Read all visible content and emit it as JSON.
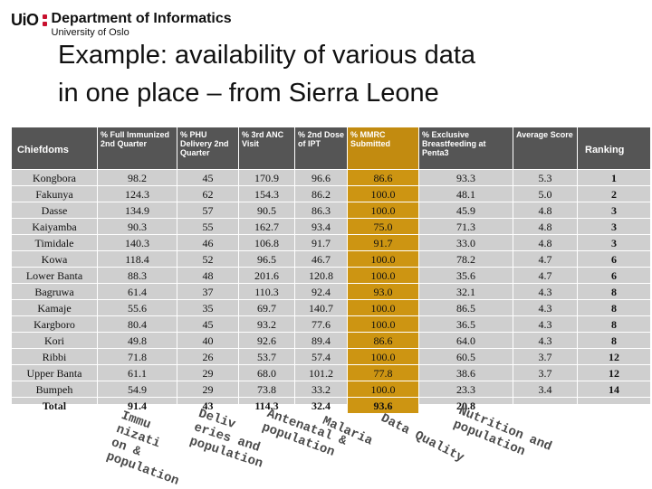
{
  "brand": {
    "logo": "UiO",
    "department": "Department of Informatics",
    "university": "University of Oslo"
  },
  "title": {
    "line1": "Example: availability of various data",
    "line2": "in one place – from Sierra Leone"
  },
  "table": {
    "headers": [
      "Chiefdoms",
      "% Full Immunized 2nd Quarter",
      "% PHU Delivery 2nd Quarter",
      "% 3rd ANC Visit",
      "% 2nd Dose of IPT",
      "% MMRC Submitted",
      "% Exclusive Breastfeeding at Penta3",
      "Average Score",
      "Ranking"
    ],
    "rows": [
      [
        "Kongbora",
        "98.2",
        "45",
        "170.9",
        "96.6",
        "86.6",
        "93.3",
        "5.3",
        "1"
      ],
      [
        "Fakunya",
        "124.3",
        "62",
        "154.3",
        "86.2",
        "100.0",
        "48.1",
        "5.0",
        "2"
      ],
      [
        "Dasse",
        "134.9",
        "57",
        "90.5",
        "86.3",
        "100.0",
        "45.9",
        "4.8",
        "3"
      ],
      [
        "Kaiyamba",
        "90.3",
        "55",
        "162.7",
        "93.4",
        "75.0",
        "71.3",
        "4.8",
        "3"
      ],
      [
        "Timidale",
        "140.3",
        "46",
        "106.8",
        "91.7",
        "91.7",
        "33.0",
        "4.8",
        "3"
      ],
      [
        "Kowa",
        "118.4",
        "52",
        "96.5",
        "46.7",
        "100.0",
        "78.2",
        "4.7",
        "6"
      ],
      [
        "Lower Banta",
        "88.3",
        "48",
        "201.6",
        "120.8",
        "100.0",
        "35.6",
        "4.7",
        "6"
      ],
      [
        "Bagruwa",
        "61.4",
        "37",
        "110.3",
        "92.4",
        "93.0",
        "32.1",
        "4.3",
        "8"
      ],
      [
        "Kamaje",
        "55.6",
        "35",
        "69.7",
        "140.7",
        "100.0",
        "86.5",
        "4.3",
        "8"
      ],
      [
        "Kargboro",
        "80.4",
        "45",
        "93.2",
        "77.6",
        "100.0",
        "36.5",
        "4.3",
        "8"
      ],
      [
        "Kori",
        "49.8",
        "40",
        "92.6",
        "89.4",
        "86.6",
        "64.0",
        "4.3",
        "8"
      ],
      [
        "Ribbi",
        "71.8",
        "26",
        "53.7",
        "57.4",
        "100.0",
        "60.5",
        "3.7",
        "12"
      ],
      [
        "Upper Banta",
        "61.1",
        "29",
        "68.0",
        "101.2",
        "77.8",
        "38.6",
        "3.7",
        "12"
      ],
      [
        "Bumpeh",
        "54.9",
        "29",
        "73.8",
        "33.2",
        "100.0",
        "23.3",
        "3.4",
        "14"
      ]
    ],
    "total": [
      "Total",
      "91.4",
      "43",
      "114.3",
      "32.4",
      "93.6",
      "20.8",
      "",
      ""
    ]
  },
  "annotations": [
    {
      "id": "immunization",
      "lines": [
        "Immu",
        "nizati",
        "on &",
        "population"
      ]
    },
    {
      "id": "deliveries",
      "lines": [
        "Deliv",
        "eries and",
        "population"
      ]
    },
    {
      "id": "antenatal",
      "lines": [
        "Antenatal &",
        "population"
      ]
    },
    {
      "id": "malaria",
      "lines": [
        "Malaria"
      ]
    },
    {
      "id": "data-quality",
      "lines": [
        "Data Quality"
      ]
    },
    {
      "id": "nutrition",
      "lines": [
        "Nutrition and",
        "population"
      ]
    }
  ]
}
